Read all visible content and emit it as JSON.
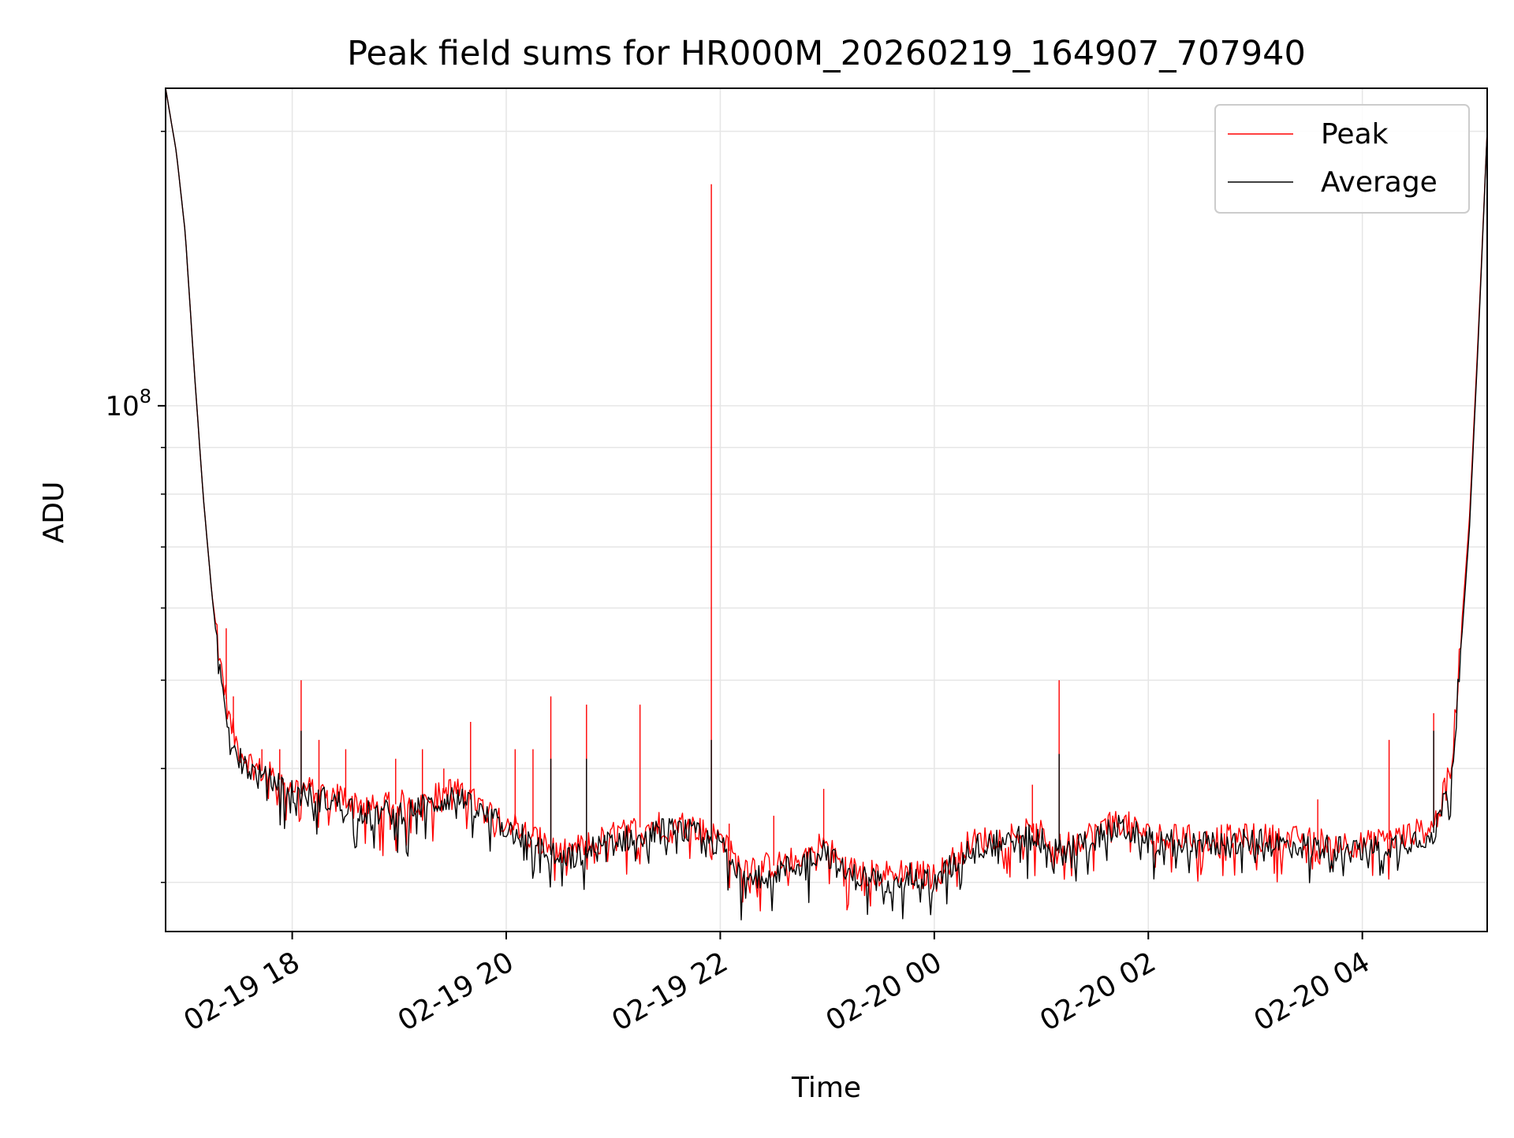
{
  "chart_data": {
    "type": "line",
    "title": "Peak field sums for HR000M_20260219_164907_707940",
    "xlabel": "Time",
    "ylabel": "ADU",
    "yscale": "log",
    "grid": true,
    "legend_position": "top-right",
    "x_range": [
      "2026-02-19 16:49",
      "2026-02-20 05:10"
    ],
    "y_range": [
      26500000,
      223000000
    ],
    "x_ticks": [
      {
        "label": "02-19 18",
        "time": "2026-02-19 18:00"
      },
      {
        "label": "02-19 20",
        "time": "2026-02-19 20:00"
      },
      {
        "label": "02-19 22",
        "time": "2026-02-19 22:00"
      },
      {
        "label": "02-20 00",
        "time": "2026-02-20 00:00"
      },
      {
        "label": "02-20 02",
        "time": "2026-02-20 02:00"
      },
      {
        "label": "02-20 04",
        "time": "2026-02-20 04:00"
      }
    ],
    "y_major_ticks": [
      {
        "value": 100000000,
        "label_base": "10",
        "label_exp": "8"
      }
    ],
    "y_minor_ticks": [
      30000000,
      40000000,
      50000000,
      60000000,
      70000000,
      80000000,
      90000000,
      200000000
    ],
    "colors": {
      "peak": "#ff0000",
      "average": "#000000",
      "grid": "#e6e6e6"
    },
    "series": [
      {
        "name": "Peak",
        "color": "#ff0000",
        "points": [
          [
            "2026-02-19 16:49",
            223000000
          ],
          [
            "2026-02-19 16:55",
            190000000
          ],
          [
            "2026-02-19 17:00",
            155000000
          ],
          [
            "2026-02-19 17:05",
            110000000
          ],
          [
            "2026-02-19 17:10",
            80000000
          ],
          [
            "2026-02-19 17:15",
            62000000
          ],
          [
            "2026-02-19 17:20",
            52000000
          ],
          [
            "2026-02-19 17:25",
            45000000
          ],
          [
            "2026-02-19 17:30",
            42000000
          ],
          [
            "2026-02-19 17:40",
            40000000
          ],
          [
            "2026-02-19 18:00",
            38300000
          ],
          [
            "2026-02-19 18:30",
            37200000
          ],
          [
            "2026-02-19 18:45",
            36200000
          ],
          [
            "2026-02-19 19:15",
            37000000
          ],
          [
            "2026-02-19 19:30",
            38000000
          ],
          [
            "2026-02-19 19:50",
            36000000
          ],
          [
            "2026-02-19 20:10",
            34200000
          ],
          [
            "2026-02-19 20:30",
            32200000
          ],
          [
            "2026-02-19 20:45",
            33000000
          ],
          [
            "2026-02-19 21:00",
            33800000
          ],
          [
            "2026-02-19 21:20",
            34700000
          ],
          [
            "2026-02-19 21:40",
            34800000
          ],
          [
            "2026-02-19 22:00",
            33600000
          ],
          [
            "2026-02-19 22:10",
            31400000
          ],
          [
            "2026-02-19 22:30",
            31300000
          ],
          [
            "2026-02-19 22:45",
            31900000
          ],
          [
            "2026-02-19 22:58",
            33200000
          ],
          [
            "2026-02-19 23:10",
            31100000
          ],
          [
            "2026-02-19 23:30",
            30600000
          ],
          [
            "2026-02-19 23:45",
            31000000
          ],
          [
            "2026-02-20 00:00",
            30400000
          ],
          [
            "2026-02-20 00:20",
            33200000
          ],
          [
            "2026-02-20 00:50",
            34100000
          ],
          [
            "2026-02-20 01:00",
            33900000
          ],
          [
            "2026-02-20 01:10",
            32800000
          ],
          [
            "2026-02-20 01:30",
            34100000
          ],
          [
            "2026-02-20 01:45",
            35000000
          ],
          [
            "2026-02-20 02:00",
            33800000
          ],
          [
            "2026-02-20 02:30",
            33500000
          ],
          [
            "2026-02-20 03:00",
            33700000
          ],
          [
            "2026-02-20 03:30",
            33400000
          ],
          [
            "2026-02-20 04:00",
            33000000
          ],
          [
            "2026-02-20 04:20",
            33600000
          ],
          [
            "2026-02-20 04:40",
            34500000
          ],
          [
            "2026-02-20 04:50",
            40000000
          ],
          [
            "2026-02-20 04:55",
            55000000
          ],
          [
            "2026-02-20 05:00",
            75000000
          ],
          [
            "2026-02-20 05:05",
            120000000
          ],
          [
            "2026-02-20 05:10",
            200000000
          ]
        ],
        "spikes": [
          [
            "2026-02-19 17:23",
            57000000
          ],
          [
            "2026-02-19 17:27",
            48000000
          ],
          [
            "2026-02-19 17:43",
            42000000
          ],
          [
            "2026-02-19 17:53",
            42000000
          ],
          [
            "2026-02-19 18:05",
            50000000
          ],
          [
            "2026-02-19 18:15",
            43000000
          ],
          [
            "2026-02-19 18:30",
            42000000
          ],
          [
            "2026-02-19 18:58",
            41000000
          ],
          [
            "2026-02-19 19:13",
            42000000
          ],
          [
            "2026-02-19 19:25",
            40000000
          ],
          [
            "2026-02-19 19:40",
            45000000
          ],
          [
            "2026-02-19 20:05",
            42000000
          ],
          [
            "2026-02-19 20:15",
            42000000
          ],
          [
            "2026-02-19 20:25",
            48000000
          ],
          [
            "2026-02-19 20:45",
            47000000
          ],
          [
            "2026-02-19 21:15",
            47000000
          ],
          [
            "2026-02-19 21:55",
            175000000
          ],
          [
            "2026-02-19 22:05",
            34800000
          ],
          [
            "2026-02-19 22:30",
            35500000
          ],
          [
            "2026-02-19 22:58",
            38000000
          ],
          [
            "2026-02-20 00:55",
            38400000
          ],
          [
            "2026-02-20 01:10",
            50000000
          ],
          [
            "2026-02-20 03:35",
            37000000
          ],
          [
            "2026-02-20 04:15",
            43000000
          ],
          [
            "2026-02-20 04:40",
            46000000
          ]
        ]
      },
      {
        "name": "Average",
        "color": "#000000",
        "points": [
          [
            "2026-02-19 16:49",
            223000000
          ],
          [
            "2026-02-19 16:55",
            190000000
          ],
          [
            "2026-02-19 17:00",
            155000000
          ],
          [
            "2026-02-19 17:05",
            110000000
          ],
          [
            "2026-02-19 17:10",
            80000000
          ],
          [
            "2026-02-19 17:15",
            62000000
          ],
          [
            "2026-02-19 17:20",
            50000000
          ],
          [
            "2026-02-19 17:25",
            44000000
          ],
          [
            "2026-02-19 17:30",
            41000000
          ],
          [
            "2026-02-19 17:40",
            39300000
          ],
          [
            "2026-02-19 18:00",
            37700000
          ],
          [
            "2026-02-19 18:30",
            36500000
          ],
          [
            "2026-02-19 18:45",
            35600000
          ],
          [
            "2026-02-19 19:15",
            36300000
          ],
          [
            "2026-02-19 19:30",
            37300000
          ],
          [
            "2026-02-19 19:50",
            35300000
          ],
          [
            "2026-02-19 20:10",
            33600000
          ],
          [
            "2026-02-19 20:30",
            31700000
          ],
          [
            "2026-02-19 20:45",
            32400000
          ],
          [
            "2026-02-19 21:00",
            33200000
          ],
          [
            "2026-02-19 21:20",
            34100000
          ],
          [
            "2026-02-19 21:40",
            34200000
          ],
          [
            "2026-02-19 22:00",
            33000000
          ],
          [
            "2026-02-19 22:10",
            30900000
          ],
          [
            "2026-02-19 22:30",
            30800000
          ],
          [
            "2026-02-19 22:45",
            31400000
          ],
          [
            "2026-02-19 22:58",
            32700000
          ],
          [
            "2026-02-19 23:10",
            30600000
          ],
          [
            "2026-02-19 23:30",
            30100000
          ],
          [
            "2026-02-19 23:45",
            30500000
          ],
          [
            "2026-02-20 00:00",
            29900000
          ],
          [
            "2026-02-20 00:20",
            32700000
          ],
          [
            "2026-02-20 00:50",
            33600000
          ],
          [
            "2026-02-20 01:00",
            33400000
          ],
          [
            "2026-02-20 01:10",
            32300000
          ],
          [
            "2026-02-20 01:30",
            33600000
          ],
          [
            "2026-02-20 01:45",
            34500000
          ],
          [
            "2026-02-20 02:00",
            33300000
          ],
          [
            "2026-02-20 02:30",
            33000000
          ],
          [
            "2026-02-20 03:00",
            33200000
          ],
          [
            "2026-02-20 03:30",
            32900000
          ],
          [
            "2026-02-20 04:00",
            32500000
          ],
          [
            "2026-02-20 04:20",
            33100000
          ],
          [
            "2026-02-20 04:40",
            34000000
          ],
          [
            "2026-02-20 04:50",
            39000000
          ],
          [
            "2026-02-20 04:55",
            53000000
          ],
          [
            "2026-02-20 05:00",
            73000000
          ],
          [
            "2026-02-20 05:05",
            118000000
          ],
          [
            "2026-02-20 05:10",
            200000000
          ]
        ],
        "spikes": [
          [
            "2026-02-19 18:05",
            44000000
          ],
          [
            "2026-02-19 20:25",
            41000000
          ],
          [
            "2026-02-19 20:45",
            41000000
          ],
          [
            "2026-02-19 21:55",
            43000000
          ],
          [
            "2026-02-20 01:10",
            41500000
          ],
          [
            "2026-02-20 04:40",
            44000000
          ]
        ]
      }
    ]
  }
}
